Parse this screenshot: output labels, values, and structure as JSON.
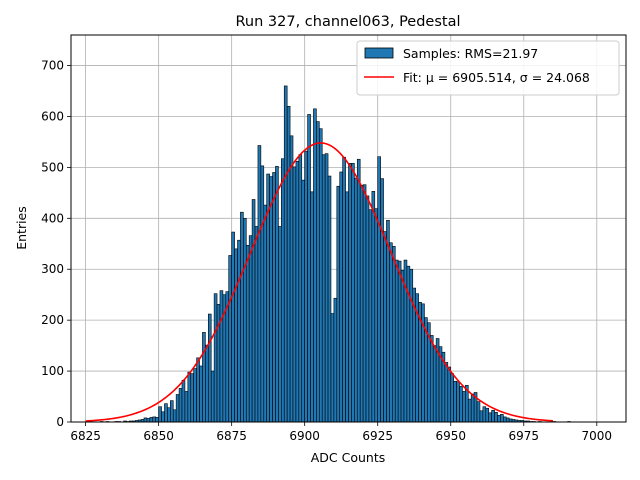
{
  "chart_data": {
    "type": "bar",
    "title": "Run 327, channel063, Pedestal",
    "xlabel": "ADC Counts",
    "ylabel": "Entries",
    "xlim": [
      6820,
      7010
    ],
    "ylim": [
      0,
      760
    ],
    "xticks": [
      6825,
      6850,
      6875,
      6900,
      6925,
      6950,
      6975,
      7000
    ],
    "yticks": [
      0,
      100,
      200,
      300,
      400,
      500,
      600,
      700
    ],
    "grid": true,
    "legend_position": "top-right",
    "series": [
      {
        "name": "Samples: RMS=21.97",
        "kind": "histogram",
        "color": "#1f77b4",
        "edgecolor": "#000000",
        "bin_width": 1,
        "bins": [
          [
            6830,
            1
          ],
          [
            6832,
            1
          ],
          [
            6835,
            1
          ],
          [
            6836,
            1
          ],
          [
            6838,
            2
          ],
          [
            6839,
            1
          ],
          [
            6840,
            2
          ],
          [
            6841,
            2
          ],
          [
            6842,
            3
          ],
          [
            6843,
            4
          ],
          [
            6844,
            5
          ],
          [
            6845,
            8
          ],
          [
            6846,
            7
          ],
          [
            6847,
            9
          ],
          [
            6848,
            10
          ],
          [
            6849,
            9
          ],
          [
            6850,
            30
          ],
          [
            6851,
            20
          ],
          [
            6852,
            36
          ],
          [
            6853,
            28
          ],
          [
            6854,
            42
          ],
          [
            6855,
            24
          ],
          [
            6856,
            54
          ],
          [
            6857,
            66
          ],
          [
            6858,
            82
          ],
          [
            6859,
            60
          ],
          [
            6860,
            98
          ],
          [
            6861,
            95
          ],
          [
            6862,
            105
          ],
          [
            6863,
            126
          ],
          [
            6864,
            110
          ],
          [
            6865,
            176
          ],
          [
            6866,
            151
          ],
          [
            6867,
            212
          ],
          [
            6868,
            100
          ],
          [
            6869,
            252
          ],
          [
            6870,
            231
          ],
          [
            6871,
            258
          ],
          [
            6872,
            250
          ],
          [
            6873,
            256
          ],
          [
            6874,
            327
          ],
          [
            6875,
            373
          ],
          [
            6876,
            340
          ],
          [
            6877,
            357
          ],
          [
            6878,
            412
          ],
          [
            6879,
            400
          ],
          [
            6880,
            347
          ],
          [
            6881,
            366
          ],
          [
            6882,
            437
          ],
          [
            6883,
            384
          ],
          [
            6884,
            543
          ],
          [
            6885,
            503
          ],
          [
            6886,
            426
          ],
          [
            6887,
            487
          ],
          [
            6888,
            482
          ],
          [
            6889,
            490
          ],
          [
            6890,
            502
          ],
          [
            6891,
            384
          ],
          [
            6892,
            517
          ],
          [
            6893,
            660
          ],
          [
            6894,
            620
          ],
          [
            6895,
            562
          ],
          [
            6896,
            501
          ],
          [
            6897,
            512
          ],
          [
            6898,
            525
          ],
          [
            6899,
            475
          ],
          [
            6900,
            532
          ],
          [
            6901,
            604
          ],
          [
            6902,
            452
          ],
          [
            6903,
            615
          ],
          [
            6904,
            590
          ],
          [
            6905,
            576
          ],
          [
            6906,
            525
          ],
          [
            6907,
            527
          ],
          [
            6908,
            483
          ],
          [
            6909,
            213
          ],
          [
            6910,
            243
          ],
          [
            6911,
            463
          ],
          [
            6912,
            491
          ],
          [
            6913,
            520
          ],
          [
            6914,
            452
          ],
          [
            6915,
            508
          ],
          [
            6916,
            508
          ],
          [
            6917,
            479
          ],
          [
            6918,
            516
          ],
          [
            6919,
            465
          ],
          [
            6920,
            466
          ],
          [
            6921,
            444
          ],
          [
            6922,
            417
          ],
          [
            6923,
            453
          ],
          [
            6924,
            419
          ],
          [
            6925,
            521
          ],
          [
            6926,
            478
          ],
          [
            6927,
            374
          ],
          [
            6928,
            396
          ],
          [
            6929,
            352
          ],
          [
            6930,
            345
          ],
          [
            6931,
            318
          ],
          [
            6932,
            316
          ],
          [
            6933,
            298
          ],
          [
            6934,
            318
          ],
          [
            6935,
            306
          ],
          [
            6936,
            300
          ],
          [
            6937,
            263
          ],
          [
            6938,
            252
          ],
          [
            6939,
            235
          ],
          [
            6940,
            232
          ],
          [
            6941,
            205
          ],
          [
            6942,
            195
          ],
          [
            6943,
            170
          ],
          [
            6944,
            150
          ],
          [
            6945,
            164
          ],
          [
            6946,
            148
          ],
          [
            6947,
            137
          ],
          [
            6948,
            117
          ],
          [
            6949,
            108
          ],
          [
            6950,
            95
          ],
          [
            6951,
            80
          ],
          [
            6952,
            79
          ],
          [
            6953,
            70
          ],
          [
            6954,
            60
          ],
          [
            6955,
            72
          ],
          [
            6956,
            45
          ],
          [
            6957,
            55
          ],
          [
            6958,
            58
          ],
          [
            6959,
            40
          ],
          [
            6960,
            22
          ],
          [
            6961,
            30
          ],
          [
            6962,
            27
          ],
          [
            6963,
            18
          ],
          [
            6964,
            23
          ],
          [
            6965,
            19
          ],
          [
            6966,
            13
          ],
          [
            6967,
            15
          ],
          [
            6968,
            10
          ],
          [
            6969,
            8
          ],
          [
            6970,
            6
          ],
          [
            6971,
            5
          ],
          [
            6972,
            4
          ],
          [
            6973,
            3
          ],
          [
            6974,
            3
          ],
          [
            6975,
            2
          ],
          [
            6976,
            2
          ],
          [
            6977,
            1
          ],
          [
            6978,
            1
          ],
          [
            6980,
            1
          ],
          [
            6985,
            1
          ],
          [
            6990,
            1
          ]
        ]
      },
      {
        "name": "Fit: μ = 6905.514, σ = 24.068",
        "kind": "line",
        "color": "#ff0000",
        "mu": 6905.514,
        "sigma": 24.068,
        "amplitude": 548,
        "x_range": [
          6825,
          6985
        ]
      }
    ]
  }
}
